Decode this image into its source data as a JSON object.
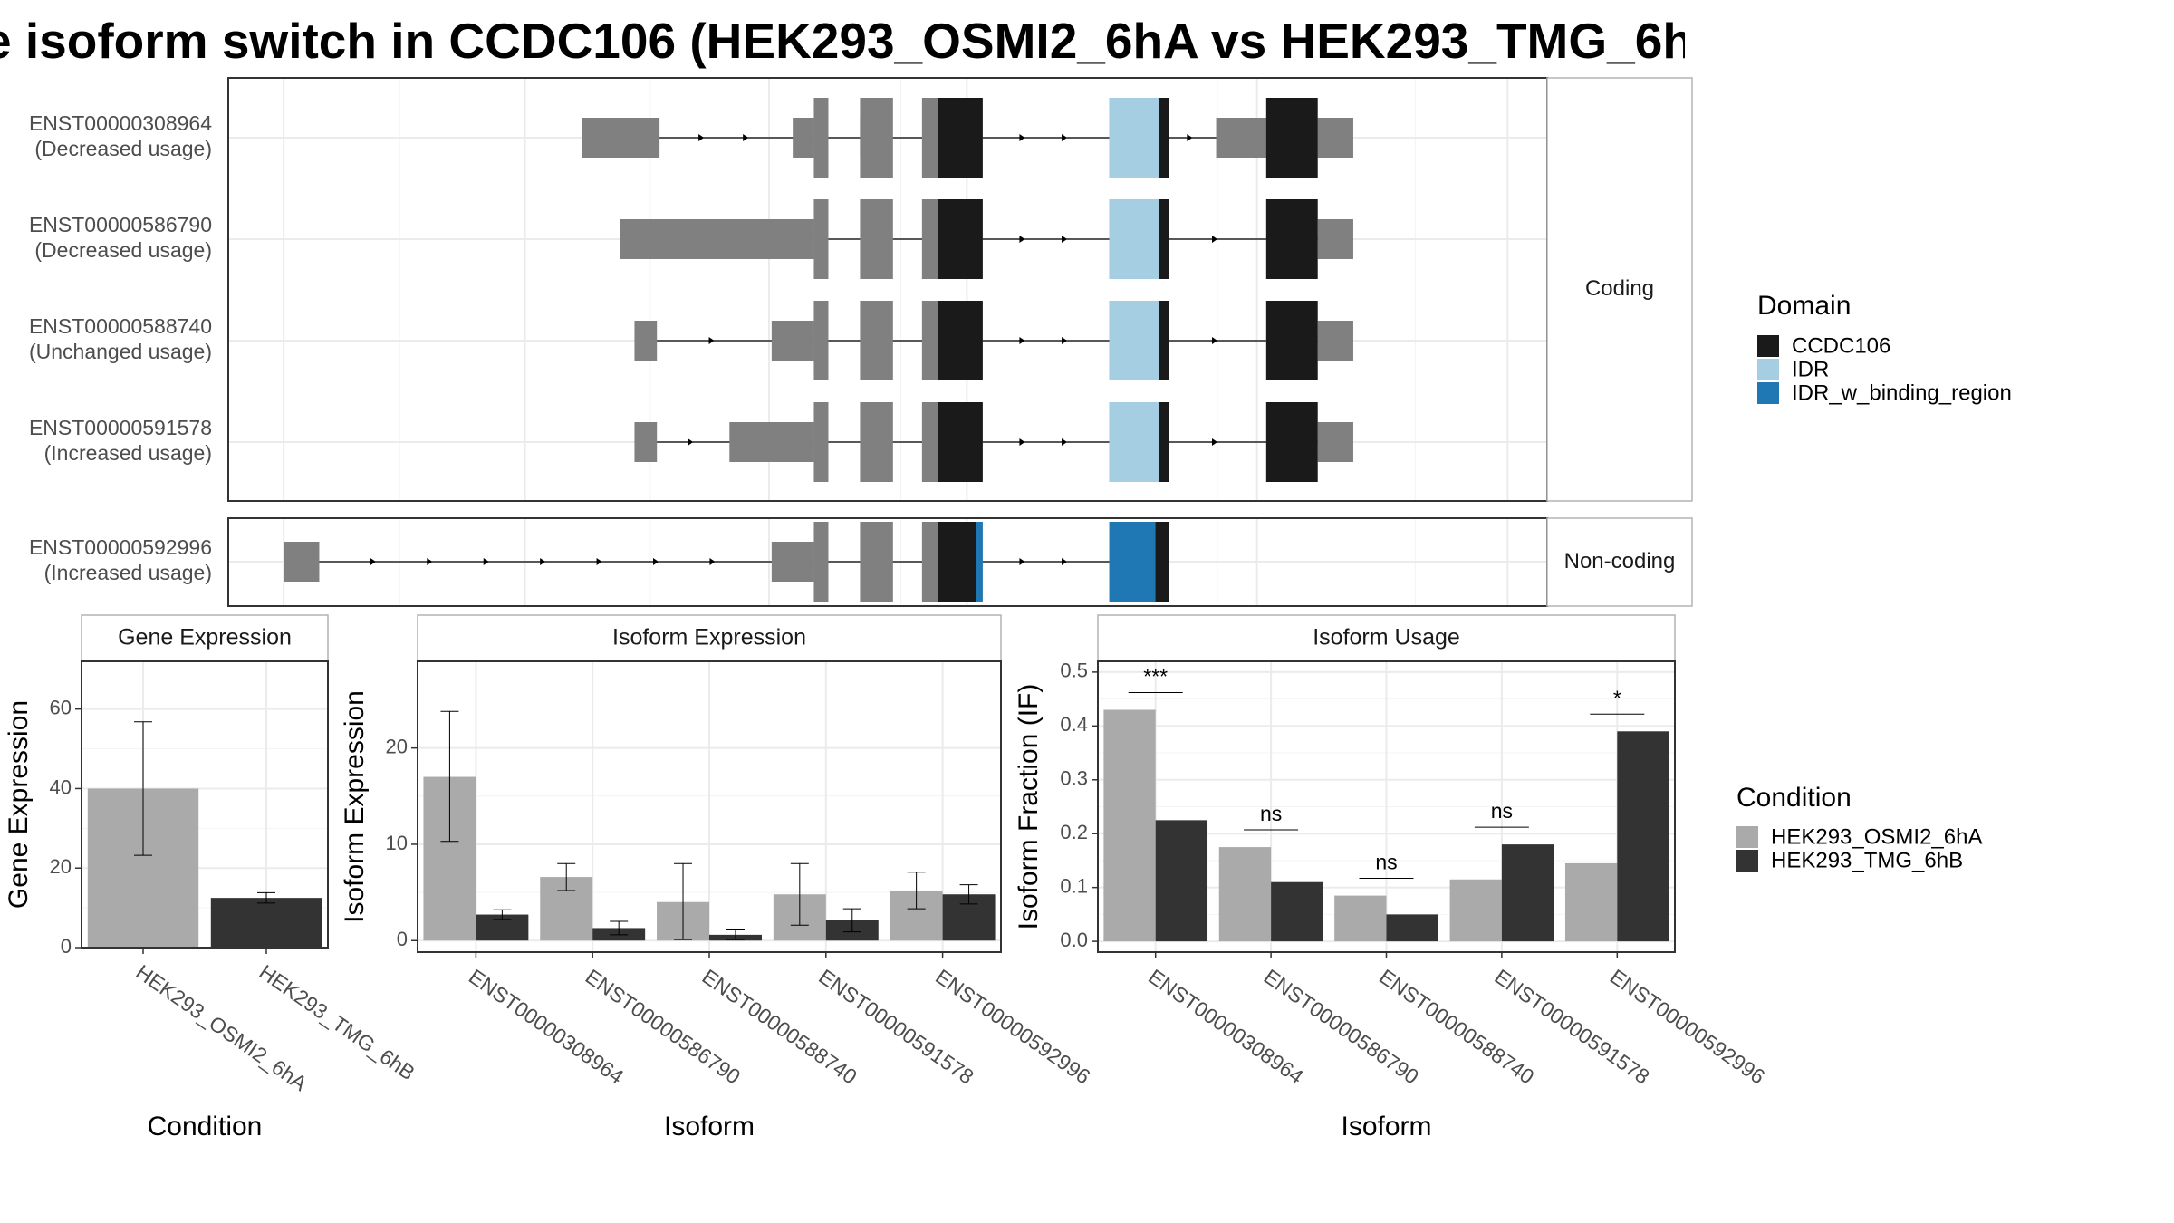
{
  "title": "e isoform switch in CCDC106 (HEK293_OSMI2_6hA vs HEK293_TMG_6h",
  "colors": {
    "CCDC106": "#1a1a1a",
    "IDR": "#a6cee3",
    "IDR_w_binding_region": "#1f78b4",
    "exon": "#808080",
    "cond_A": "#aaaaaa",
    "cond_B": "#333333"
  },
  "chart_data": [
    {
      "type": "transcript_structure",
      "facets": [
        "Coding",
        "Non-coding"
      ],
      "legend": {
        "title": "Domain",
        "items": [
          {
            "name": "CCDC106",
            "color": "#1a1a1a"
          },
          {
            "name": "IDR",
            "color": "#a6cee3"
          },
          {
            "name": "IDR_w_binding_region",
            "color": "#1f78b4"
          }
        ]
      },
      "transcripts": [
        {
          "id": "ENST00000308964",
          "usage": "(Decreased usage)",
          "facet": "Coding",
          "utr": [
            [
              0.268,
              0.327
            ],
            [
              0.428,
              0.444
            ],
            [
              0.479,
              0.486
            ],
            [
              0.749,
              0.853
            ]
          ],
          "cds": [
            [
              0.444,
              0.455
            ],
            [
              0.479,
              0.504
            ],
            [
              0.526,
              0.538
            ],
            [
              0.538,
              0.572
            ],
            [
              0.668,
              0.706
            ],
            [
              0.706,
              0.713
            ],
            [
              0.787,
              0.826
            ]
          ],
          "domains": [
            {
              "name": "CCDC106",
              "range": [
                0.538,
                0.572
              ]
            },
            {
              "name": "IDR",
              "range": [
                0.668,
                0.706
              ]
            },
            {
              "name": "CCDC106",
              "range": [
                0.706,
                0.713
              ]
            },
            {
              "name": "CCDC106",
              "range": [
                0.787,
                0.826
              ]
            }
          ]
        },
        {
          "id": "ENST00000586790",
          "usage": "(Decreased usage)",
          "facet": "Coding",
          "utr": [
            [
              0.297,
              0.444
            ],
            [
              0.826,
              0.853
            ]
          ],
          "cds": [
            [
              0.444,
              0.455
            ],
            [
              0.479,
              0.504
            ],
            [
              0.526,
              0.538
            ],
            [
              0.538,
              0.572
            ],
            [
              0.668,
              0.706
            ],
            [
              0.706,
              0.713
            ],
            [
              0.787,
              0.826
            ]
          ],
          "domains": [
            {
              "name": "CCDC106",
              "range": [
                0.538,
                0.572
              ]
            },
            {
              "name": "IDR",
              "range": [
                0.668,
                0.706
              ]
            },
            {
              "name": "CCDC106",
              "range": [
                0.706,
                0.713
              ]
            },
            {
              "name": "CCDC106",
              "range": [
                0.787,
                0.826
              ]
            }
          ]
        },
        {
          "id": "ENST00000588740",
          "usage": "(Unchanged usage)",
          "facet": "Coding",
          "utr": [
            [
              0.308,
              0.325
            ],
            [
              0.412,
              0.444
            ],
            [
              0.826,
              0.853
            ]
          ],
          "cds": [
            [
              0.444,
              0.455
            ],
            [
              0.479,
              0.504
            ],
            [
              0.526,
              0.538
            ],
            [
              0.538,
              0.572
            ],
            [
              0.668,
              0.706
            ],
            [
              0.706,
              0.713
            ],
            [
              0.787,
              0.826
            ]
          ],
          "domains": [
            {
              "name": "CCDC106",
              "range": [
                0.538,
                0.572
              ]
            },
            {
              "name": "IDR",
              "range": [
                0.668,
                0.706
              ]
            },
            {
              "name": "CCDC106",
              "range": [
                0.706,
                0.713
              ]
            },
            {
              "name": "CCDC106",
              "range": [
                0.787,
                0.826
              ]
            }
          ]
        },
        {
          "id": "ENST00000591578",
          "usage": "(Increased usage)",
          "facet": "Coding",
          "utr": [
            [
              0.308,
              0.325
            ],
            [
              0.38,
              0.444
            ],
            [
              0.826,
              0.853
            ]
          ],
          "cds": [
            [
              0.444,
              0.455
            ],
            [
              0.479,
              0.504
            ],
            [
              0.526,
              0.538
            ],
            [
              0.538,
              0.572
            ],
            [
              0.668,
              0.706
            ],
            [
              0.706,
              0.713
            ],
            [
              0.787,
              0.826
            ]
          ],
          "domains": [
            {
              "name": "CCDC106",
              "range": [
                0.538,
                0.572
              ]
            },
            {
              "name": "IDR",
              "range": [
                0.668,
                0.706
              ]
            },
            {
              "name": "CCDC106",
              "range": [
                0.706,
                0.713
              ]
            },
            {
              "name": "CCDC106",
              "range": [
                0.787,
                0.826
              ]
            }
          ]
        },
        {
          "id": "ENST00000592996",
          "usage": "(Increased usage)",
          "facet": "Non-coding",
          "utr": [
            [
              0.042,
              0.069
            ],
            [
              0.412,
              0.444
            ]
          ],
          "cds": [
            [
              0.444,
              0.455
            ],
            [
              0.479,
              0.504
            ],
            [
              0.526,
              0.538
            ],
            [
              0.538,
              0.567
            ],
            [
              0.567,
              0.572
            ],
            [
              0.668,
              0.703
            ],
            [
              0.703,
              0.713
            ]
          ],
          "domains": [
            {
              "name": "CCDC106",
              "range": [
                0.538,
                0.567
              ]
            },
            {
              "name": "IDR_w_binding_region",
              "range": [
                0.567,
                0.572
              ]
            },
            {
              "name": "IDR_w_binding_region",
              "range": [
                0.668,
                0.703
              ]
            },
            {
              "name": "CCDC106",
              "range": [
                0.703,
                0.713
              ]
            }
          ]
        }
      ]
    },
    {
      "type": "bar",
      "title": "Gene Expression",
      "xlabel": "Condition",
      "ylabel": "Gene Expression",
      "categories": [
        "HEK293_OSMI2_6hA",
        "HEK293_TMG_6hB"
      ],
      "values": [
        40,
        12.5
      ],
      "error": [
        [
          23.2,
          56.8
        ],
        [
          11.2,
          13.8
        ]
      ],
      "ylim": [
        0,
        72
      ],
      "yticks": [
        0,
        20,
        40,
        60
      ]
    },
    {
      "type": "bar",
      "title": "Isoform Expression",
      "xlabel": "Isoform",
      "ylabel": "Isoform Expression",
      "categories": [
        "ENST00000308964",
        "ENST00000586790",
        "ENST00000588740",
        "ENST00000591578",
        "ENST00000592996"
      ],
      "series": [
        {
          "name": "HEK293_OSMI2_6hA",
          "values": [
            17.0,
            6.6,
            4.0,
            4.8,
            5.2
          ],
          "error": [
            [
              10.3,
              23.8
            ],
            [
              5.2,
              8.0
            ],
            [
              0.1,
              8.0
            ],
            [
              1.6,
              8.0
            ],
            [
              3.3,
              7.1
            ]
          ]
        },
        {
          "name": "HEK293_TMG_6hB",
          "values": [
            2.7,
            1.3,
            0.6,
            2.1,
            4.8
          ],
          "error": [
            [
              2.2,
              3.2
            ],
            [
              0.6,
              2.0
            ],
            [
              0.1,
              1.1
            ],
            [
              0.9,
              3.3
            ],
            [
              3.8,
              5.8
            ]
          ]
        }
      ],
      "ylim": [
        -1.2,
        29
      ],
      "yticks": [
        0,
        10,
        20
      ]
    },
    {
      "type": "bar",
      "title": "Isoform Usage",
      "xlabel": "Isoform",
      "ylabel": "Isoform Fraction (IF)",
      "categories": [
        "ENST00000308964",
        "ENST00000586790",
        "ENST00000588740",
        "ENST00000591578",
        "ENST00000592996"
      ],
      "series": [
        {
          "name": "HEK293_OSMI2_6hA",
          "values": [
            0.43,
            0.175,
            0.085,
            0.115,
            0.145
          ]
        },
        {
          "name": "HEK293_TMG_6hB",
          "values": [
            0.225,
            0.11,
            0.05,
            0.18,
            0.39
          ]
        }
      ],
      "significance": [
        "***",
        "ns",
        "ns",
        "ns",
        "*"
      ],
      "ylim": [
        -0.02,
        0.52
      ],
      "yticks": [
        0.0,
        0.1,
        0.2,
        0.3,
        0.4,
        0.5
      ],
      "ytick_labels": [
        "0.0",
        "0.1",
        "0.2",
        "0.3",
        "0.4",
        "0.5"
      ]
    }
  ],
  "condition_legend": {
    "title": "Condition",
    "items": [
      {
        "name": "HEK293_OSMI2_6hA",
        "color": "#aaaaaa"
      },
      {
        "name": "HEK293_TMG_6hB",
        "color": "#333333"
      }
    ]
  }
}
